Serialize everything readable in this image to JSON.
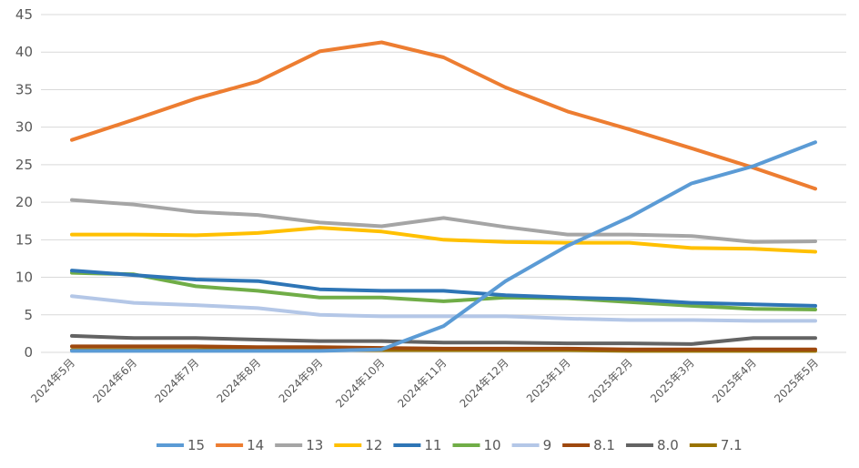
{
  "chart_data": {
    "type": "line",
    "ylim": [
      0,
      45
    ],
    "yticks": [
      0,
      5,
      10,
      15,
      20,
      25,
      30,
      35,
      40,
      45
    ],
    "grid": true,
    "legend_position": "bottom",
    "categories": [
      "2024年5月",
      "2024年6月",
      "2024年7月",
      "2024年8月",
      "2024年9月",
      "2024年10月",
      "2024年11月",
      "2024年12月",
      "2025年1月",
      "2025年2月",
      "2025年3月",
      "2025年4月",
      "2025年5月"
    ],
    "series": [
      {
        "name": "15",
        "color": "#5b9bd5",
        "values": [
          0.2,
          0.2,
          0.2,
          0.2,
          0.2,
          0.4,
          3.5,
          9.5,
          14.2,
          18.0,
          22.5,
          24.8,
          28.0
        ]
      },
      {
        "name": "14",
        "color": "#ed7d31",
        "values": [
          28.3,
          31.0,
          33.8,
          36.1,
          40.1,
          41.3,
          39.3,
          35.3,
          32.1,
          29.7,
          27.2,
          24.6,
          21.8
        ]
      },
      {
        "name": "13",
        "color": "#a5a5a5",
        "values": [
          20.3,
          19.7,
          18.7,
          18.3,
          17.3,
          16.8,
          17.9,
          16.7,
          15.7,
          15.7,
          15.5,
          14.7,
          14.8
        ]
      },
      {
        "name": "12",
        "color": "#ffc000",
        "values": [
          15.7,
          15.7,
          15.6,
          15.9,
          16.6,
          16.1,
          15.0,
          14.7,
          14.6,
          14.6,
          13.9,
          13.8,
          13.4
        ]
      },
      {
        "name": "11",
        "color": "#2e75b6",
        "values": [
          10.9,
          10.3,
          9.7,
          9.5,
          8.4,
          8.2,
          8.2,
          7.6,
          7.3,
          7.1,
          6.6,
          6.4,
          6.2
        ]
      },
      {
        "name": "10",
        "color": "#70ad47",
        "values": [
          10.6,
          10.4,
          8.8,
          8.2,
          7.3,
          7.3,
          6.8,
          7.3,
          7.2,
          6.7,
          6.2,
          5.8,
          5.7
        ]
      },
      {
        "name": "9",
        "color": "#b4c7e7",
        "values": [
          7.5,
          6.6,
          6.3,
          5.9,
          5.0,
          4.8,
          4.8,
          4.8,
          4.5,
          4.3,
          4.3,
          4.2,
          4.2
        ]
      },
      {
        "name": "8.1",
        "color": "#9e480e",
        "values": [
          0.8,
          0.8,
          0.8,
          0.7,
          0.7,
          0.6,
          0.5,
          0.5,
          0.5,
          0.4,
          0.4,
          0.4,
          0.4
        ]
      },
      {
        "name": "8.0",
        "color": "#636363",
        "values": [
          2.2,
          1.9,
          1.9,
          1.7,
          1.5,
          1.5,
          1.3,
          1.3,
          1.2,
          1.2,
          1.1,
          1.9,
          1.9
        ]
      },
      {
        "name": "7.1",
        "color": "#997300",
        "values": [
          0.3,
          0.3,
          0.3,
          0.3,
          0.3,
          0.3,
          0.3,
          0.3,
          0.3,
          0.2,
          0.2,
          0.2,
          0.2
        ]
      }
    ]
  }
}
